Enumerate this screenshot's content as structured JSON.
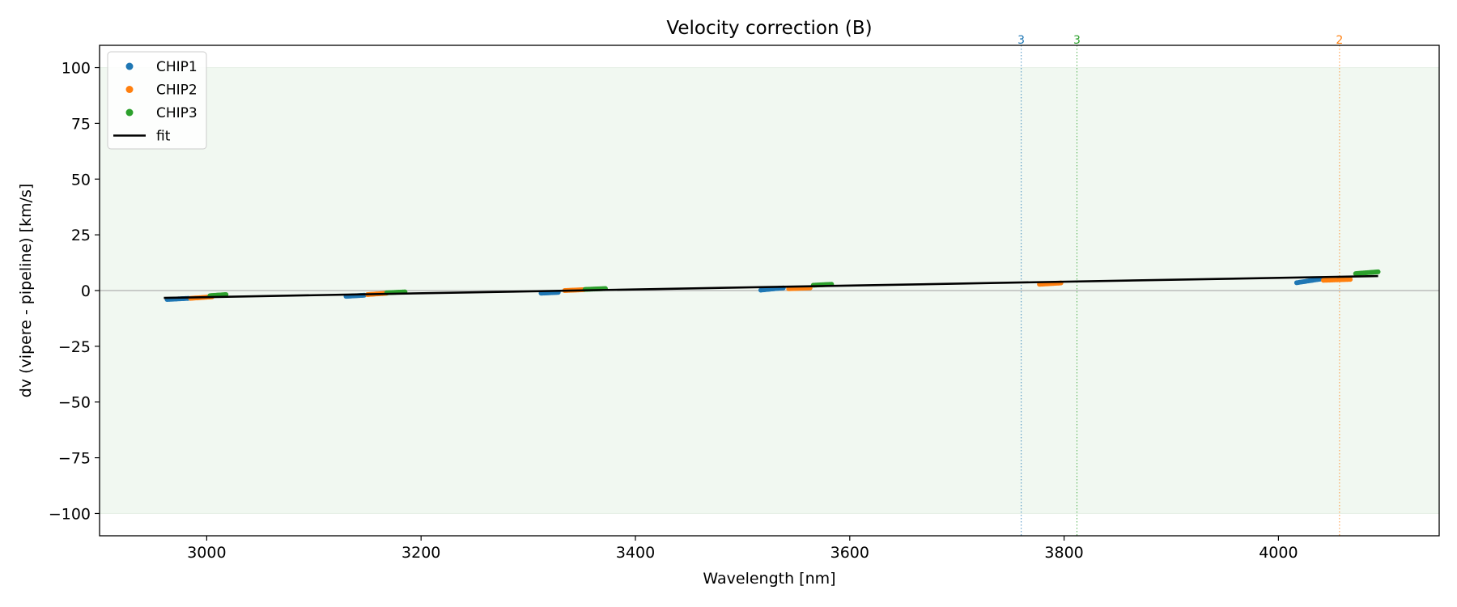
{
  "chart_data": {
    "type": "scatter",
    "title": "Velocity correction (B)",
    "xlabel": "Wavelength [nm]",
    "ylabel": "dv (vipere - pipeline) [km/s]",
    "xlim": [
      2900,
      4150
    ],
    "ylim": [
      -110,
      110
    ],
    "xticks": [
      3000,
      3200,
      3400,
      3600,
      3800,
      4000
    ],
    "yticks": [
      -100,
      -75,
      -50,
      -25,
      0,
      25,
      50,
      75,
      100
    ],
    "xtick_labels": [
      "3000",
      "3200",
      "3400",
      "3600",
      "3800",
      "4000"
    ],
    "ytick_labels": [
      "−100",
      "−75",
      "−50",
      "−25",
      "0",
      "25",
      "50",
      "75",
      "100"
    ],
    "shaded_band": {
      "y": [
        -100,
        100
      ],
      "color": "#f1f8f1"
    },
    "zero_line": {
      "y": 0,
      "color": "#9e9e9e"
    },
    "grid": false,
    "legend_position": "top-left",
    "series": [
      {
        "name": "CHIP1",
        "color": "#1f77b4",
        "segments": [
          {
            "x": [
              2963,
              2983
            ],
            "y": [
              -4.0,
              -3.5
            ]
          },
          {
            "x": [
              3130,
              3147
            ],
            "y": [
              -2.6,
              -2.1
            ]
          },
          {
            "x": [
              3312,
              3328
            ],
            "y": [
              -1.2,
              -0.8
            ]
          },
          {
            "x": [
              3517,
              3538
            ],
            "y": [
              0.2,
              1.2
            ]
          },
          {
            "x": [
              4017,
              4040
            ],
            "y": [
              3.5,
              5.2
            ]
          }
        ]
      },
      {
        "name": "CHIP2",
        "color": "#ff7f0e",
        "segments": [
          {
            "x": [
              2985,
              3005
            ],
            "y": [
              -3.5,
              -2.8
            ]
          },
          {
            "x": [
              3150,
              3168
            ],
            "y": [
              -1.8,
              -1.2
            ]
          },
          {
            "x": [
              3334,
              3352
            ],
            "y": [
              0.0,
              0.4
            ]
          },
          {
            "x": [
              3543,
              3563
            ],
            "y": [
              0.8,
              1.2
            ]
          },
          {
            "x": [
              3777,
              3797
            ],
            "y": [
              2.8,
              3.4
            ]
          },
          {
            "x": [
              4042,
              4067
            ],
            "y": [
              4.6,
              5.0
            ]
          }
        ]
      },
      {
        "name": "CHIP3",
        "color": "#2ca02c",
        "segments": [
          {
            "x": [
              3003,
              3018
            ],
            "y": [
              -2.3,
              -1.8
            ]
          },
          {
            "x": [
              3168,
              3185
            ],
            "y": [
              -1.0,
              -0.6
            ]
          },
          {
            "x": [
              3353,
              3372
            ],
            "y": [
              0.5,
              0.9
            ]
          },
          {
            "x": [
              3566,
              3583
            ],
            "y": [
              2.4,
              2.8
            ]
          },
          {
            "x": [
              4072,
              4093
            ],
            "y": [
              7.6,
              8.4
            ]
          }
        ]
      }
    ],
    "fit": {
      "name": "fit",
      "color": "#000000",
      "x": [
        2960,
        4093
      ],
      "y": [
        -3.3,
        6.5
      ]
    },
    "vertical_lines": [
      {
        "x": 3760,
        "label": "3",
        "color": "#1f77b4"
      },
      {
        "x": 3812,
        "label": "3",
        "color": "#2ca02c"
      },
      {
        "x": 4057,
        "label": "2",
        "color": "#ff7f0e"
      }
    ]
  }
}
